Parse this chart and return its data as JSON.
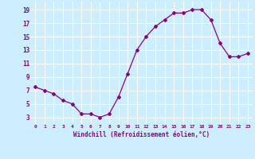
{
  "x": [
    0,
    1,
    2,
    3,
    4,
    5,
    6,
    7,
    8,
    9,
    10,
    11,
    12,
    13,
    14,
    15,
    16,
    17,
    18,
    19,
    20,
    21,
    22,
    23
  ],
  "y": [
    7.5,
    7.0,
    6.5,
    5.5,
    5.0,
    3.5,
    3.5,
    3.0,
    3.5,
    6.0,
    9.5,
    13.0,
    15.0,
    16.5,
    17.5,
    18.5,
    18.5,
    19.0,
    19.0,
    17.5,
    14.0,
    12.0,
    12.0,
    12.5
  ],
  "line_color": "#8b008b",
  "marker": "D",
  "marker_size": 2.0,
  "bg_color": "#cceeff",
  "grid_color": "#ffffff",
  "xlabel": "Windchill (Refroidissement éolien,°C)",
  "xlabel_color": "#8b008b",
  "tick_color": "#8b008b",
  "yticks": [
    3,
    5,
    7,
    9,
    11,
    13,
    15,
    17,
    19
  ],
  "xtick_labels": [
    "0",
    "1",
    "2",
    "3",
    "4",
    "5",
    "6",
    "7",
    "8",
    "9",
    "10",
    "11",
    "12",
    "13",
    "14",
    "15",
    "16",
    "17",
    "18",
    "19",
    "20",
    "21",
    "22",
    "23"
  ],
  "xlim": [
    -0.5,
    23.5
  ],
  "ylim": [
    2.0,
    20.2
  ]
}
